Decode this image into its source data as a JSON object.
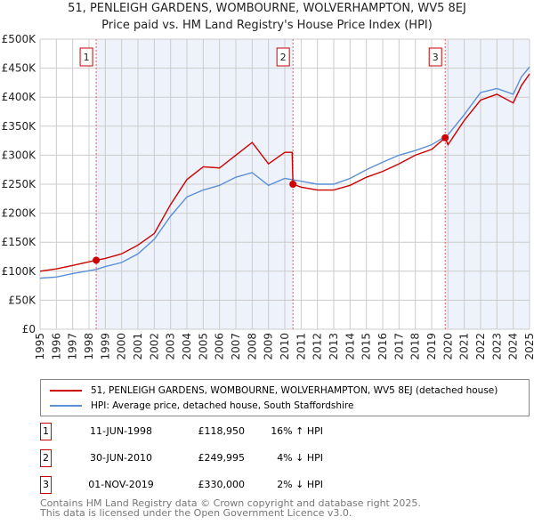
{
  "chart_data": {
    "type": "line",
    "title": "51, PENLEIGH GARDENS, WOMBOURNE, WOLVERHAMPTON, WV5 8EJ",
    "subtitle": "Price paid vs. HM Land Registry's House Price Index (HPI)",
    "xlim": [
      1995,
      2025
    ],
    "ylim": [
      0,
      500000
    ],
    "x_ticks": [
      "1995",
      "1996",
      "1997",
      "1998",
      "1999",
      "2000",
      "2001",
      "2002",
      "2003",
      "2004",
      "2005",
      "2006",
      "2007",
      "2008",
      "2009",
      "2010",
      "2011",
      "2012",
      "2013",
      "2014",
      "2015",
      "2016",
      "2017",
      "2018",
      "2019",
      "2020",
      "2021",
      "2022",
      "2023",
      "2024",
      "2025"
    ],
    "y_ticks": [
      {
        "v": 0,
        "label": "£0"
      },
      {
        "v": 50000,
        "label": "£50K"
      },
      {
        "v": 100000,
        "label": "£100K"
      },
      {
        "v": 150000,
        "label": "£150K"
      },
      {
        "v": 200000,
        "label": "£200K"
      },
      {
        "v": 250000,
        "label": "£250K"
      },
      {
        "v": 300000,
        "label": "£300K"
      },
      {
        "v": 350000,
        "label": "£350K"
      },
      {
        "v": 400000,
        "label": "£400K"
      },
      {
        "v": 450000,
        "label": "£450K"
      },
      {
        "v": 500000,
        "label": "£500K"
      }
    ],
    "grid": true,
    "series": [
      {
        "name": "51, PENLEIGH GARDENS, WOMBOURNE, WOLVERHAMPTON, WV5 8EJ (detached house)",
        "color": "#cc0000",
        "x": [
          1995,
          1996,
          1997,
          1998.44,
          1999,
          2000,
          2001,
          2002,
          2003,
          2004,
          2005,
          2006,
          2007,
          2008,
          2009,
          2010.0,
          2010.45,
          2010.5,
          2011,
          2012,
          2013,
          2014,
          2015,
          2016,
          2017,
          2018,
          2019,
          2019.83,
          2020,
          2021,
          2022,
          2023,
          2024,
          2024.5,
          2025
        ],
        "values": [
          100000,
          104000,
          110000,
          118950,
          122000,
          130000,
          145000,
          165000,
          215000,
          258000,
          280000,
          278000,
          300000,
          322000,
          285000,
          305000,
          305000,
          249995,
          245000,
          240000,
          240000,
          248000,
          262000,
          272000,
          285000,
          300000,
          310000,
          330000,
          318000,
          360000,
          395000,
          405000,
          390000,
          420000,
          440000
        ]
      },
      {
        "name": "HPI: Average price, detached house, South Staffordshire",
        "color": "#5b8fd6",
        "x": [
          1995,
          1996,
          1997,
          1998.44,
          1999,
          2000,
          2001,
          2002,
          2003,
          2004,
          2005,
          2006,
          2007,
          2008,
          2009,
          2010,
          2011,
          2012,
          2013,
          2014,
          2015,
          2016,
          2017,
          2018,
          2019,
          2020,
          2021,
          2022,
          2023,
          2024,
          2024.5,
          2025
        ],
        "values": [
          88000,
          90000,
          96000,
          103000,
          108000,
          115000,
          130000,
          155000,
          195000,
          228000,
          240000,
          248000,
          262000,
          270000,
          248000,
          260000,
          255000,
          250000,
          250000,
          260000,
          275000,
          288000,
          300000,
          308000,
          318000,
          335000,
          370000,
          408000,
          415000,
          405000,
          435000,
          452000
        ]
      }
    ],
    "sales": [
      {
        "n": "1",
        "x": 1998.44,
        "value": 118950,
        "date": "11-JUN-1998",
        "price": "£118,950",
        "hpi": "16% ↑ HPI"
      },
      {
        "n": "2",
        "x": 2010.5,
        "value": 249995,
        "date": "30-JUN-2010",
        "price": "£249,995",
        "hpi": "4% ↓ HPI"
      },
      {
        "n": "3",
        "x": 2019.83,
        "value": 330000,
        "date": "01-NOV-2019",
        "price": "£330,000",
        "hpi": "2% ↓ HPI"
      }
    ],
    "legend_position": "below"
  },
  "legend": {
    "red": "51, PENLEIGH GARDENS, WOMBOURNE, WOLVERHAMPTON, WV5 8EJ (detached house)",
    "blue": "HPI: Average price, detached house, South Staffordshire"
  },
  "footer": {
    "line1": "Contains HM Land Registry data © Crown copyright and database right 2025.",
    "line2": "This data is licensed under the Open Government Licence v3.0."
  }
}
